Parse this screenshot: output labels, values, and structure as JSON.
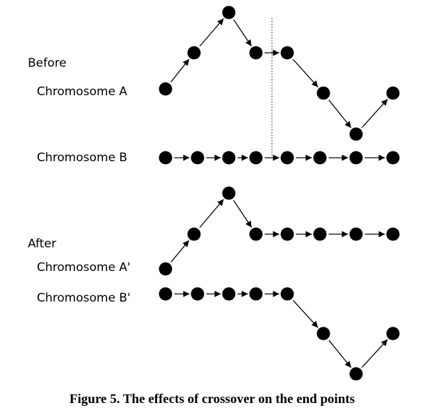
{
  "labels": {
    "before": "Before",
    "chromosome_a": "Chromosome A",
    "chromosome_b": "Chromosome B",
    "after": "After",
    "chromosome_a_prime": "Chromosome A'",
    "chromosome_b_prime": "Chromosome B'"
  },
  "caption": "Figure 5. The effects of crossover on the end points",
  "chromosomes": {
    "a": {
      "points": 8,
      "shape": "peaked then dipped"
    },
    "b": {
      "points": 8,
      "shape": "flat"
    },
    "a_prime": {
      "points": 8,
      "shape": "head of A, tail of B"
    },
    "b_prime": {
      "points": 8,
      "shape": "head of B, tail of A"
    }
  },
  "crossover_point_after_index": 3
}
